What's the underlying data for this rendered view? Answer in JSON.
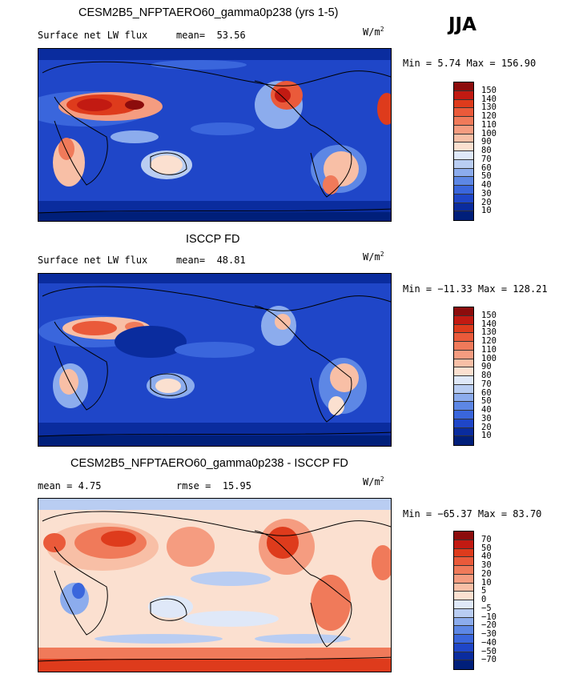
{
  "season": "JJA",
  "units": "W/m",
  "units_sup": "2",
  "panels": [
    {
      "title": "CESM2B5_NFPTAERO60_gamma0p238 (yrs 1-5)",
      "left_label": "Surface net LW flux",
      "stat_label": "mean=",
      "stat_value": "53.56",
      "minmax": "Min =   5.74 Max = 156.90",
      "colorbar": {
        "labels": [
          "150",
          "140",
          "130",
          "120",
          "110",
          "100",
          "90",
          "80",
          "70",
          "60",
          "50",
          "40",
          "30",
          "20",
          "10"
        ],
        "colors": [
          "#8c0c0c",
          "#c21a12",
          "#de3b1c",
          "#ea5a3a",
          "#f07a5a",
          "#f59c80",
          "#f8bfa6",
          "#fbe0d0",
          "#dfe8f8",
          "#b9cdf2",
          "#8caced",
          "#5d87e5",
          "#3a66dc",
          "#1f46c8",
          "#0a2c9e",
          "#001f7a"
        ]
      }
    },
    {
      "title": "ISCCP FD",
      "left_label": "Surface net LW flux",
      "stat_label": "mean=",
      "stat_value": "48.81",
      "minmax": "Min = −11.33 Max = 128.21",
      "colorbar": {
        "labels": [
          "150",
          "140",
          "130",
          "120",
          "110",
          "100",
          "90",
          "80",
          "70",
          "60",
          "50",
          "40",
          "30",
          "20",
          "10"
        ],
        "colors": [
          "#8c0c0c",
          "#c21a12",
          "#de3b1c",
          "#ea5a3a",
          "#f07a5a",
          "#f59c80",
          "#f8bfa6",
          "#fbe0d0",
          "#dfe8f8",
          "#b9cdf2",
          "#8caced",
          "#5d87e5",
          "#3a66dc",
          "#1f46c8",
          "#0a2c9e",
          "#001f7a"
        ]
      }
    },
    {
      "title": "CESM2B5_NFPTAERO60_gamma0p238 - ISCCP FD",
      "left_label": "mean =   4.75",
      "stat_label": "rmse =",
      "stat_value": "15.95",
      "minmax": "Min = −65.37 Max =  83.70",
      "colorbar": {
        "labels": [
          "70",
          "50",
          "40",
          "30",
          "20",
          "10",
          "5",
          "0",
          "−5",
          "−10",
          "−20",
          "−30",
          "−40",
          "−50",
          "−70"
        ],
        "colors": [
          "#8c0c0c",
          "#c21a12",
          "#de3b1c",
          "#ea5a3a",
          "#f07a5a",
          "#f59c80",
          "#f8bfa6",
          "#fbe0d0",
          "#dfe8f8",
          "#b9cdf2",
          "#8caced",
          "#5d87e5",
          "#3a66dc",
          "#1f46c8",
          "#0a2c9e",
          "#001f7a"
        ]
      }
    }
  ],
  "chart_data": [
    {
      "type": "heatmap",
      "title": "CESM2B5_NFPTAERO60_gamma0p238 (yrs 1-5)",
      "subtitle": "Surface net LW flux",
      "units": "W/m2",
      "season": "JJA",
      "mean": 53.56,
      "min": 5.74,
      "max": 156.9,
      "levels": [
        10,
        20,
        30,
        40,
        50,
        60,
        70,
        80,
        90,
        100,
        110,
        120,
        130,
        140,
        150
      ]
    },
    {
      "type": "heatmap",
      "title": "ISCCP FD",
      "subtitle": "Surface net LW flux",
      "units": "W/m2",
      "season": "JJA",
      "mean": 48.81,
      "min": -11.33,
      "max": 128.21,
      "levels": [
        10,
        20,
        30,
        40,
        50,
        60,
        70,
        80,
        90,
        100,
        110,
        120,
        130,
        140,
        150
      ]
    },
    {
      "type": "heatmap",
      "title": "CESM2B5_NFPTAERO60_gamma0p238 - ISCCP FD",
      "units": "W/m2",
      "season": "JJA",
      "mean": 4.75,
      "rmse": 15.95,
      "min": -65.37,
      "max": 83.7,
      "levels": [
        -70,
        -50,
        -40,
        -30,
        -20,
        -10,
        -5,
        0,
        5,
        10,
        20,
        30,
        40,
        50,
        70
      ]
    }
  ]
}
